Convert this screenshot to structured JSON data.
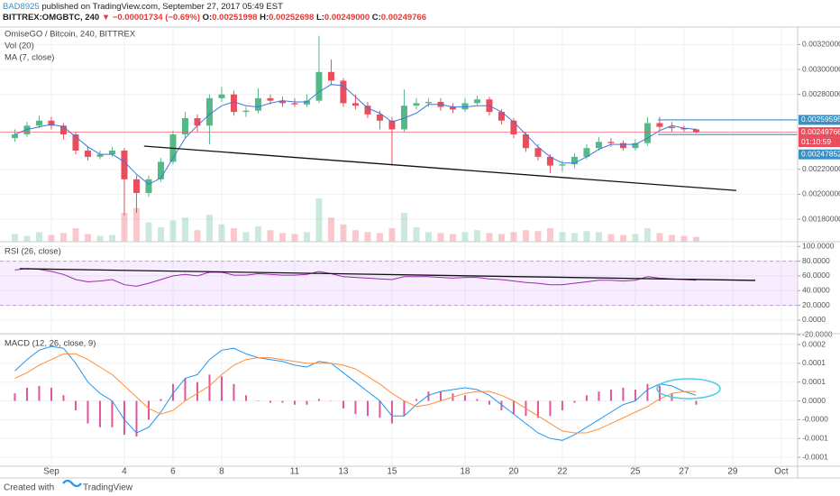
{
  "header": {
    "author": "BAD8925",
    "published": "published on TradingView.com, September 27, 2017 05:49 EST",
    "symbol": "BITTREX:OMGBTC, 240",
    "change": "▼ −0.00001734 (−0.69%)",
    "ohlc": [
      {
        "label": "O:",
        "value": "0.00251998"
      },
      {
        "label": "H:",
        "value": "0.00252698"
      },
      {
        "label": "L:",
        "value": "0.00249000"
      },
      {
        "label": "C:",
        "value": "0.00249766"
      }
    ]
  },
  "footer": {
    "created": "Created with",
    "brand": "TradingView"
  },
  "chart_data": [
    {
      "type": "candlestick",
      "title": "OmiseGO / Bitcoin, 240, BITTREX",
      "indicators": [
        "Vol (20)",
        "MA (7, close)"
      ],
      "up_color": "#53b987",
      "down_color": "#eb4d5c",
      "x": [
        -0.5,
        0,
        0.5,
        1,
        1.5,
        2,
        2.5,
        3,
        3.5,
        4,
        4.5,
        5,
        5.5,
        6,
        6.5,
        7,
        7.5,
        8,
        8.5,
        9,
        9.5,
        10,
        10.5,
        11,
        11.5,
        12,
        12.5,
        13,
        13.5,
        14,
        14.5,
        15,
        15.5,
        16,
        16.5,
        17,
        17.5,
        18,
        18.5,
        19,
        19.5,
        20,
        20.5,
        21,
        21.5,
        22,
        22.5,
        23,
        23.5,
        24,
        24.5,
        25,
        25.5,
        26,
        26.5,
        27,
        27.5
      ],
      "open": [
        0.00245,
        0.00248,
        0.00255,
        0.00259,
        0.00255,
        0.00248,
        0.00235,
        0.0023,
        0.00232,
        0.00235,
        0.00212,
        0.00201,
        0.00212,
        0.00226,
        0.00248,
        0.00261,
        0.00255,
        0.00277,
        0.0028,
        0.00266,
        0.00267,
        0.00277,
        0.00275,
        0.00273,
        0.00272,
        0.00275,
        0.00298,
        0.00291,
        0.00273,
        0.00271,
        0.00264,
        0.00259,
        0.00252,
        0.00271,
        0.00273,
        0.00274,
        0.0027,
        0.00268,
        0.00273,
        0.00276,
        0.00266,
        0.00259,
        0.00248,
        0.00237,
        0.0023,
        0.00223,
        0.00224,
        0.0023,
        0.00237,
        0.00242,
        0.00241,
        0.00237,
        0.00241,
        0.00257,
        0.00254,
        0.00253,
        0.00251998
      ],
      "high": [
        0.00252,
        0.00258,
        0.00263,
        0.00262,
        0.00257,
        0.0025,
        0.00238,
        0.00235,
        0.00238,
        0.00237,
        0.00215,
        0.00215,
        0.00229,
        0.00251,
        0.00266,
        0.00264,
        0.0028,
        0.00286,
        0.00283,
        0.0027,
        0.00285,
        0.0028,
        0.00278,
        0.00277,
        0.0028,
        0.00327,
        0.00308,
        0.00293,
        0.0028,
        0.00274,
        0.00267,
        0.00262,
        0.00284,
        0.00277,
        0.00277,
        0.00277,
        0.00273,
        0.00277,
        0.00279,
        0.00278,
        0.00268,
        0.00261,
        0.0025,
        0.0024,
        0.00232,
        0.00227,
        0.00233,
        0.0024,
        0.00246,
        0.00245,
        0.00243,
        0.00244,
        0.00262,
        0.00262,
        0.00258,
        0.00255,
        0.00252698
      ],
      "low": [
        0.00242,
        0.00246,
        0.00253,
        0.00252,
        0.00244,
        0.00232,
        0.00227,
        0.00228,
        0.0023,
        0.00183,
        0.00185,
        0.00198,
        0.0021,
        0.00224,
        0.00245,
        0.0025,
        0.0024,
        0.00274,
        0.00263,
        0.00262,
        0.00265,
        0.00272,
        0.0027,
        0.0027,
        0.0027,
        0.00273,
        0.00288,
        0.0027,
        0.00268,
        0.00261,
        0.00252,
        0.00223,
        0.0025,
        0.00268,
        0.0027,
        0.00267,
        0.00265,
        0.00266,
        0.00271,
        0.00263,
        0.00256,
        0.00245,
        0.00234,
        0.00227,
        0.00217,
        0.00218,
        0.00221,
        0.00228,
        0.00235,
        0.00238,
        0.00235,
        0.00235,
        0.00239,
        0.00251,
        0.0025,
        0.0025,
        0.00249
      ],
      "close": [
        0.00248,
        0.00255,
        0.00259,
        0.00255,
        0.00248,
        0.00235,
        0.0023,
        0.00232,
        0.00235,
        0.00212,
        0.00201,
        0.00212,
        0.00226,
        0.00248,
        0.00261,
        0.00255,
        0.00277,
        0.0028,
        0.00266,
        0.00267,
        0.00277,
        0.00275,
        0.00273,
        0.00272,
        0.00275,
        0.00298,
        0.00291,
        0.00273,
        0.00271,
        0.00264,
        0.00259,
        0.00252,
        0.00271,
        0.00273,
        0.00274,
        0.0027,
        0.00268,
        0.00273,
        0.00276,
        0.00266,
        0.00259,
        0.00248,
        0.00237,
        0.0023,
        0.00223,
        0.00224,
        0.0023,
        0.00237,
        0.00242,
        0.00241,
        0.00237,
        0.00241,
        0.00257,
        0.00254,
        0.00253,
        0.00252,
        0.00249766
      ],
      "volume": [
        8,
        6,
        10,
        7,
        9,
        14,
        8,
        6,
        7,
        30,
        35,
        20,
        15,
        22,
        25,
        12,
        28,
        18,
        14,
        10,
        16,
        12,
        9,
        8,
        10,
        45,
        25,
        18,
        12,
        10,
        9,
        14,
        30,
        15,
        10,
        9,
        8,
        10,
        12,
        9,
        8,
        10,
        12,
        11,
        14,
        10,
        9,
        11,
        10,
        8,
        7,
        8,
        14,
        9,
        7,
        6,
        5
      ],
      "ma": {
        "color": "#3c78d8",
        "values": [
          0.00248,
          0.00252,
          0.00254,
          0.00256,
          0.00254,
          0.00246,
          0.00238,
          0.00232,
          0.00232,
          0.00226,
          0.00216,
          0.00208,
          0.00213,
          0.00229,
          0.00245,
          0.00255,
          0.00264,
          0.00271,
          0.00274,
          0.00271,
          0.0027,
          0.00273,
          0.00275,
          0.00274,
          0.00274,
          0.00282,
          0.00288,
          0.00287,
          0.00278,
          0.00269,
          0.00265,
          0.00258,
          0.00261,
          0.00265,
          0.00272,
          0.00272,
          0.0027,
          0.0027,
          0.00271,
          0.00271,
          0.00266,
          0.00258,
          0.00248,
          0.00238,
          0.0023,
          0.00225,
          0.00225,
          0.0023,
          0.00236,
          0.0024,
          0.0024,
          0.0024,
          0.00245,
          0.00251,
          0.00255,
          0.00253,
          0.00252
        ]
      },
      "xlim": [
        -1.11,
        31.67
      ],
      "xticks": [
        {
          "value": 1,
          "label": "Sep"
        },
        4,
        6,
        8,
        11,
        13,
        15,
        18,
        20,
        22,
        25,
        27,
        29,
        {
          "value": 31,
          "label": "Oct"
        }
      ],
      "ylim": [
        0.00162,
        0.00334
      ],
      "yticks": [
        {
          "value": 0.0032,
          "label": "0.00320000"
        },
        {
          "value": 0.003,
          "label": "0.00300000"
        },
        {
          "value": 0.0028,
          "label": "0.00280000"
        },
        {
          "value": 0.0022,
          "label": "0.00220000"
        },
        {
          "value": 0.002,
          "label": "0.00200000"
        },
        {
          "value": 0.0018,
          "label": "0.00180000"
        }
      ],
      "grid": true,
      "trendline": {
        "x": [
          4.81,
          29.15
        ],
        "y": [
          0.002386,
          0.00203
        ]
      },
      "levels": [
        {
          "value": 0.00259595,
          "color": "#3c8fc4"
        },
        {
          "value": 0.00247852,
          "color": "#3c8fc4"
        }
      ],
      "last_price": {
        "value": 0.00249766,
        "color": "#eb4d5c",
        "countdown": "01:10:59"
      }
    },
    {
      "type": "line",
      "title": "RSI (26, close)",
      "color": "#9c27b0",
      "band": [
        20,
        80
      ],
      "values": [
        68,
        70,
        69,
        66,
        62,
        55,
        52,
        53,
        55,
        48,
        46,
        50,
        55,
        60,
        62,
        60,
        65,
        65,
        61,
        61,
        63,
        62,
        61,
        61,
        62,
        66,
        63,
        59,
        58,
        57,
        56,
        55,
        59,
        59,
        59,
        58,
        57,
        58,
        58,
        56,
        55,
        53,
        51,
        50,
        48,
        48,
        50,
        52,
        54,
        54,
        53,
        54,
        59,
        57,
        56,
        55,
        54
      ],
      "ylim": [
        -16,
        104
      ],
      "yticks": [
        {
          "value": 100,
          "label": "100.0000"
        },
        {
          "value": 80,
          "label": "80.0000"
        },
        {
          "value": 60,
          "label": "60.0000"
        },
        {
          "value": 40,
          "label": "40.0000"
        },
        {
          "value": 20,
          "label": "20.0000"
        },
        {
          "value": 0,
          "label": "0.0000"
        },
        {
          "value": -20,
          "label": "-20.0000"
        }
      ],
      "trendline": {
        "x": [
          -0.3,
          29.93
        ],
        "y": [
          69.8,
          53.9
        ]
      }
    },
    {
      "type": "macd",
      "title": "MACD (12, 26, close, 9)",
      "series": [
        {
          "color": "#2196f3",
          "values": [
            8e-05,
            0.00011,
            0.000135,
            0.000145,
            0.00014,
            0.0001,
            5e-05,
            2e-05,
            0,
            -5e-05,
            -8.5e-05,
            -7e-05,
            -3e-05,
            2e-05,
            6e-05,
            7e-05,
            0.00011,
            0.000135,
            0.00014,
            0.000125,
            0.000115,
            0.00011,
            0.000105,
            9.5e-05,
            9e-05,
            0.000105,
            0.0001,
            7.5e-05,
            5e-05,
            2.5e-05,
            0,
            -4e-05,
            -4e-05,
            -1e-05,
            1.5e-05,
            2.5e-05,
            3e-05,
            3.5e-05,
            3e-05,
            1.5e-05,
            -1e-05,
            -3.5e-05,
            -6e-05,
            -8.5e-05,
            -0.0001,
            -0.000105,
            -9e-05,
            -7e-05,
            -5e-05,
            -3e-05,
            -1e-05,
            0,
            3e-05,
            4.5e-05,
            4e-05,
            2.5e-05,
            1.5e-05
          ]
        },
        {
          "color": "#ff8f3a",
          "values": [
            6e-05,
            7.5e-05,
            9.5e-05,
            0.00011,
            0.000125,
            0.000125,
            0.00011,
            9e-05,
            7e-05,
            4e-05,
            1e-05,
            -2e-05,
            -3.5e-05,
            -2.5e-05,
            0,
            2e-05,
            4e-05,
            7e-05,
            9.5e-05,
            0.00011,
            0.000115,
            0.000115,
            0.00011,
            0.000105,
            0.0001,
            0.0001,
            0.0001,
            9.5e-05,
            8.5e-05,
            6.5e-05,
            4.5e-05,
            2e-05,
            0,
            -1.5e-05,
            -1e-05,
            0,
            1e-05,
            2e-05,
            2.5e-05,
            2.5e-05,
            1.5e-05,
            0,
            -2e-05,
            -4e-05,
            -6e-05,
            -8e-05,
            -8.5e-05,
            -8.5e-05,
            -7.5e-05,
            -6e-05,
            -4.5e-05,
            -3e-05,
            -1.5e-05,
            5e-06,
            2e-05,
            2.5e-05,
            2.5e-05
          ]
        }
      ],
      "histogram": {
        "color": "#e0559a",
        "values": [
          2e-05,
          3.5e-05,
          4e-05,
          3.5e-05,
          1.5e-05,
          -2.5e-05,
          -6e-05,
          -7e-05,
          -7e-05,
          -9e-05,
          -9.5e-05,
          -5e-05,
          5e-06,
          4.5e-05,
          6e-05,
          5e-05,
          7e-05,
          6.5e-05,
          4.5e-05,
          1.5e-05,
          0,
          -5e-06,
          -5e-06,
          -1e-05,
          -1e-05,
          5e-06,
          0,
          -2e-05,
          -3.5e-05,
          -4e-05,
          -4.5e-05,
          -6e-05,
          -4e-05,
          5e-06,
          2.5e-05,
          2.5e-05,
          2e-05,
          1.5e-05,
          5e-06,
          -1e-05,
          -2.5e-05,
          -3.5e-05,
          -4e-05,
          -4.5e-05,
          -4e-05,
          -2.5e-05,
          -5e-06,
          1.5e-05,
          2.5e-05,
          3e-05,
          3.5e-05,
          3e-05,
          4.5e-05,
          4e-05,
          2e-05,
          0,
          -1e-05
        ]
      },
      "ylim": [
        -0.000169,
        0.000174
      ],
      "yticks": [
        {
          "value": 0.00015,
          "label": "0.0002"
        },
        {
          "value": 0.0001,
          "label": "0.0001"
        },
        {
          "value": 5e-05,
          "label": "0.0001"
        },
        {
          "value": 0,
          "label": "0.0000"
        },
        {
          "value": -5e-05,
          "label": "-0.0000"
        },
        {
          "value": -0.0001,
          "label": "-0.0001"
        },
        {
          "value": -0.00015,
          "label": "-0.0001"
        }
      ]
    }
  ]
}
